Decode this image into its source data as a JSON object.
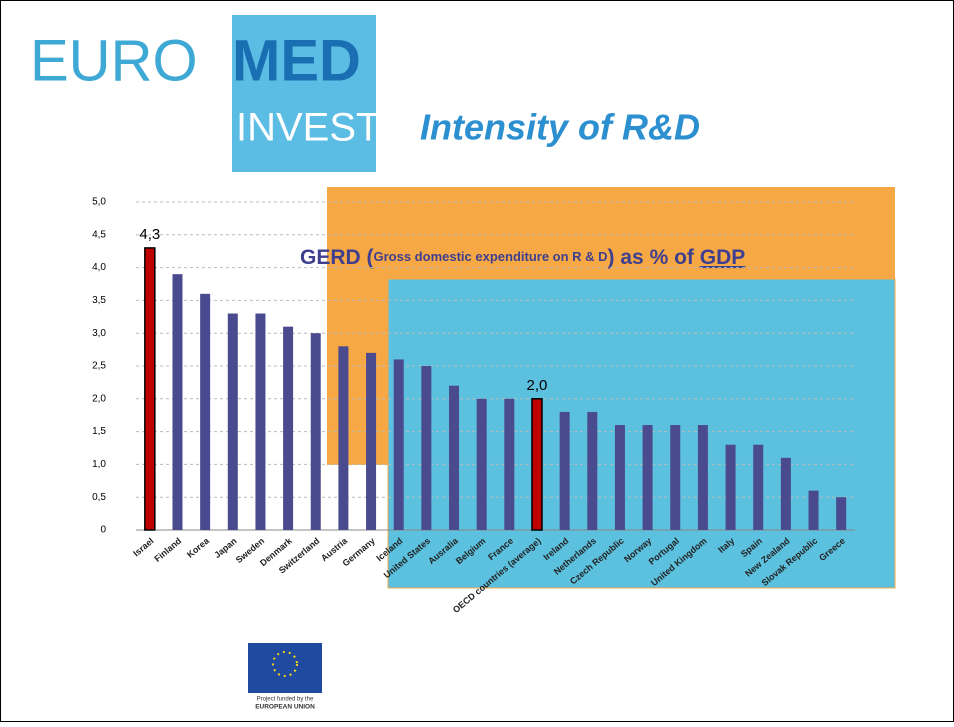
{
  "slide": {
    "logo": {
      "part1": "EURO",
      "part2": "MED",
      "part3": "INVEST"
    },
    "title": "Intensity of R&D",
    "note": {
      "prefix": "GERD (",
      "detail": "Gross domestic expenditure on R & D",
      "middle": ") as % of ",
      "tail": "GDP"
    },
    "funding": {
      "line1": "Project funded by the",
      "line2": "EUROPEAN UNION"
    }
  },
  "chart_data": {
    "type": "bar",
    "categories": [
      "Israel",
      "Finland",
      "Korea",
      "Japan",
      "Sweden",
      "Denmark",
      "Switzerland",
      "Austria",
      "Germany",
      "Iceland",
      "United States",
      "Ausralia",
      "Belgium",
      "France",
      "OECD countries (average)",
      "Ireland",
      "Netherlands",
      "Czech Republic",
      "Norway",
      "Portugal",
      "United Kingdom",
      "Italy",
      "Spain",
      "New Zealand",
      "Slovak Republic",
      "Greece"
    ],
    "values": [
      4.3,
      3.9,
      3.6,
      3.3,
      3.3,
      3.1,
      3.0,
      2.8,
      2.7,
      2.6,
      2.5,
      2.2,
      2.0,
      2.0,
      2.0,
      1.8,
      1.8,
      1.6,
      1.6,
      1.6,
      1.6,
      1.3,
      1.3,
      1.1,
      0.6,
      0.5
    ],
    "value_labels": [
      "4,3",
      null,
      null,
      null,
      null,
      null,
      null,
      null,
      null,
      null,
      null,
      null,
      null,
      null,
      "2,0",
      null,
      null,
      null,
      null,
      null,
      null,
      null,
      null,
      null,
      null,
      null
    ],
    "bar_colors": [
      "#c00000",
      "#4a4a8e",
      "#4a4a8e",
      "#4a4a8e",
      "#4a4a8e",
      "#4a4a8e",
      "#4a4a8e",
      "#4a4a8e",
      "#4a4a8e",
      "#4a4a8e",
      "#4a4a8e",
      "#4a4a8e",
      "#4a4a8e",
      "#4a4a8e",
      "#c00000",
      "#4a4a8e",
      "#4a4a8e",
      "#4a4a8e",
      "#4a4a8e",
      "#4a4a8e",
      "#4a4a8e",
      "#4a4a8e",
      "#4a4a8e",
      "#4a4a8e",
      "#4a4a8e",
      "#4a4a8e"
    ],
    "ylim": [
      0,
      5
    ],
    "yticks": [
      0,
      {
        "value": 0.5,
        "label": "0,5"
      },
      {
        "value": 1,
        "label": "1,0"
      },
      {
        "value": 1.5,
        "label": "1,5"
      },
      {
        "value": 2,
        "label": "2,0"
      },
      {
        "value": 2.5,
        "label": "2,5"
      },
      {
        "value": 3,
        "label": "3,0"
      },
      {
        "value": 3.5,
        "label": "3,5"
      },
      {
        "value": 4,
        "label": "4,0"
      },
      {
        "value": 4.5,
        "label": "4,5"
      },
      {
        "value": 5,
        "label": "5,0"
      }
    ],
    "grid": true
  }
}
